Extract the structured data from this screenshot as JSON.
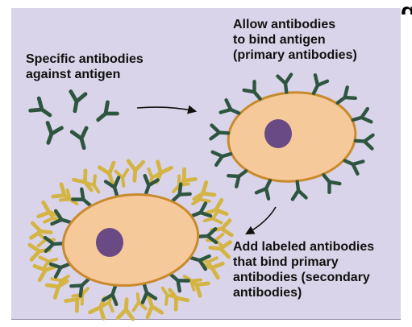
{
  "labels": {
    "step1": "Specific antibodies\nagainst antigen",
    "step2": "Allow antibodies\nto bind antigen\n(primary antibodies)",
    "step3": "Add labeled antibodies\nthat bind primary\nantibodies (secondary\nantibodies)"
  },
  "corner_glyph": "g",
  "colors": {
    "background": "#d9d4e9",
    "cell_fill": "#f6c99a",
    "cell_outline": "#c98a2c",
    "nucleus": "#6a4a84",
    "primary_antibody": "#2e5540",
    "secondary_antibody": "#d4b443",
    "arrow": "#111111"
  },
  "icons": {
    "primary_antibody": "y-shaped-antibody-icon",
    "secondary_antibody": "labeled-y-shaped-antibody-icon",
    "cell": "cell-icon",
    "nucleus": "nucleus-icon",
    "arrow": "arrow-icon"
  }
}
